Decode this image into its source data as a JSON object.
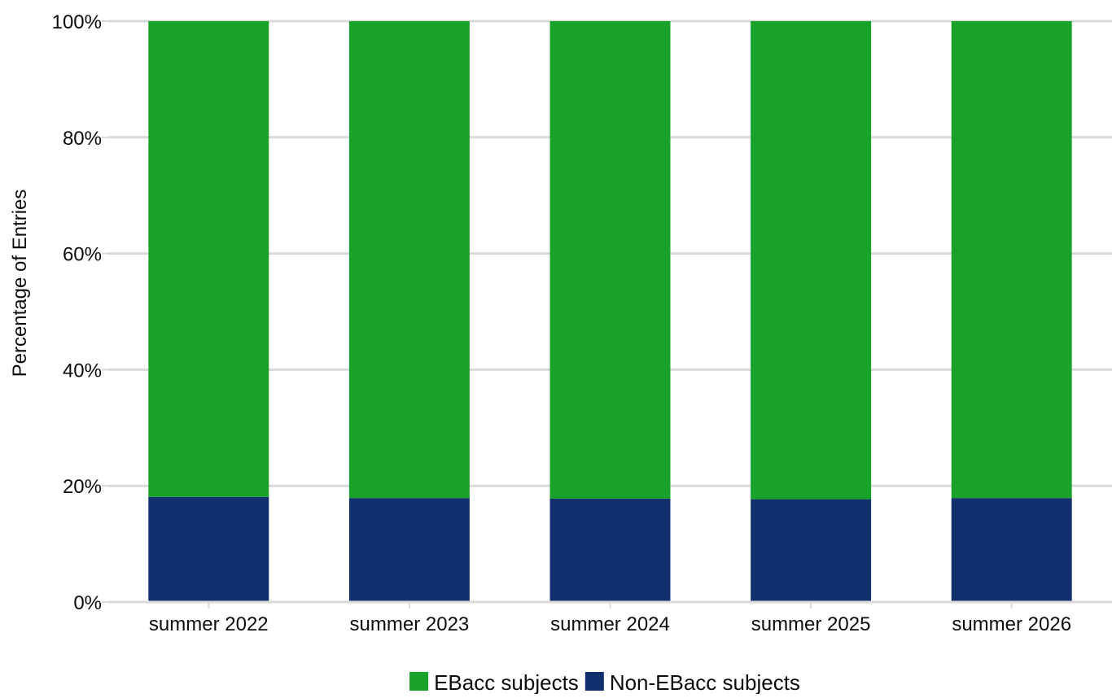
{
  "chart_data": {
    "type": "bar",
    "stacked": true,
    "categories": [
      "summer 2022",
      "summer 2023",
      "summer 2024",
      "summer 2025",
      "summer 2026"
    ],
    "series": [
      {
        "name": "Non-EBacc subjects",
        "color": "#12306e",
        "values": [
          18.1,
          17.9,
          17.8,
          17.7,
          17.9
        ]
      },
      {
        "name": "EBacc subjects",
        "color": "#18a22a",
        "values": [
          81.9,
          82.1,
          82.2,
          82.3,
          82.1
        ]
      }
    ],
    "legend_order": [
      "EBacc subjects",
      "Non-EBacc subjects"
    ],
    "ylabel": "Percentage of Entries",
    "xlabel": "",
    "ylim": [
      0,
      100
    ],
    "yticks": [
      "0%",
      "20%",
      "40%",
      "60%",
      "80%",
      "100%"
    ],
    "ytick_values": [
      0,
      20,
      40,
      60,
      80,
      100
    ],
    "grid": true,
    "legend_position": "bottom-center"
  }
}
